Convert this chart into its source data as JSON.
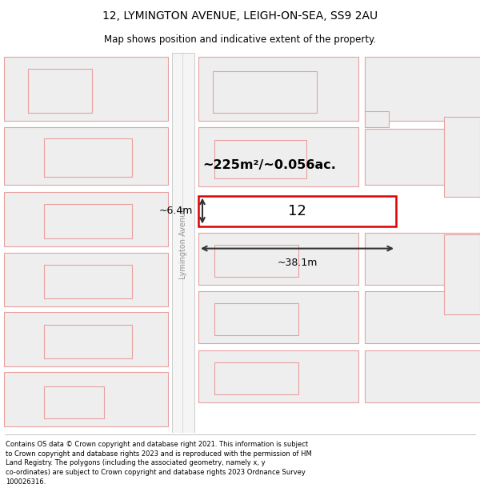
{
  "title_line1": "12, LYMINGTON AVENUE, LEIGH-ON-SEA, SS9 2AU",
  "title_line2": "Map shows position and indicative extent of the property.",
  "footer_text": "Contains OS data © Crown copyright and database right 2021. This information is subject to Crown copyright and database rights 2023 and is reproduced with the permission of HM Land Registry. The polygons (including the associated geometry, namely x, y co-ordinates) are subject to Crown copyright and database rights 2023 Ordnance Survey 100026316.",
  "area_label": "~225m²/~0.056ac.",
  "width_label": "~38.1m",
  "height_label": "~6.4m",
  "property_number": "12",
  "street_label": "Lymington Avenue",
  "bg_color": "#ffffff",
  "map_bg": "#ffffff",
  "plot_outline_color": "#dd0000",
  "neighbor_outline_color": "#e8a0a0",
  "neighbor_fill_color": "#eeeeee",
  "road_fill_color": "#f5f5f5",
  "road_line_color": "#cccccc",
  "dim_line_color": "#333333",
  "title_fontsize": 10,
  "subtitle_fontsize": 8.5,
  "footer_fontsize": 6.0
}
